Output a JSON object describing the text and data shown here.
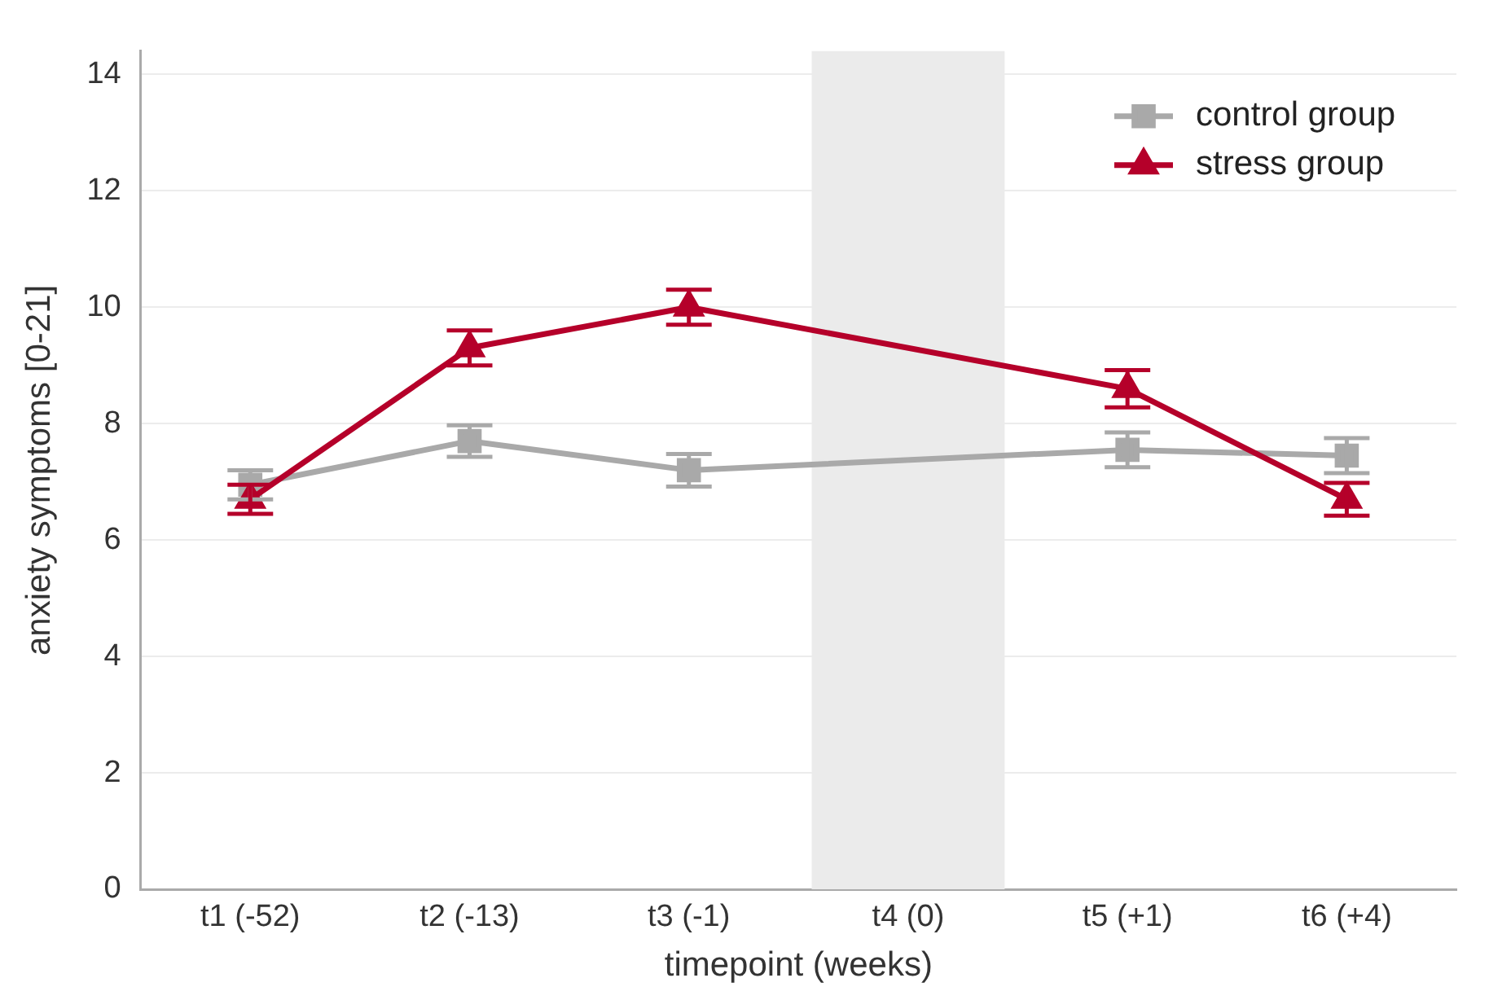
{
  "chart_data": {
    "type": "line",
    "xlabel": "timepoint (weeks)",
    "ylabel": "anxiety symptoms [0-21]",
    "categories": [
      "t1 (-52)",
      "t2 (-13)",
      "t3 (-1)",
      "t4 (0)",
      "t5 (+1)",
      "t6 (+4)"
    ],
    "series": [
      {
        "name": "control group",
        "color": "#a9a9a9",
        "marker": "square",
        "values": [
          6.95,
          7.7,
          7.2,
          null,
          7.55,
          7.45
        ],
        "errors": [
          0.25,
          0.27,
          0.28,
          null,
          0.3,
          0.3
        ]
      },
      {
        "name": "stress group",
        "color": "#b5002a",
        "marker": "triangle",
        "values": [
          6.7,
          9.3,
          10.0,
          null,
          8.6,
          6.7
        ],
        "errors": [
          0.25,
          0.3,
          0.3,
          null,
          0.32,
          0.28
        ]
      }
    ],
    "bands": [
      {
        "axis": "x",
        "from": "t4 (0)",
        "to": "t4 (0)",
        "color": "#ebebeb"
      }
    ],
    "ylim": [
      0,
      14.4
    ],
    "yticks": [
      0,
      2,
      4,
      6,
      8,
      10,
      12,
      14
    ],
    "grid": "y",
    "legend": "top right",
    "line_style": "solid"
  }
}
